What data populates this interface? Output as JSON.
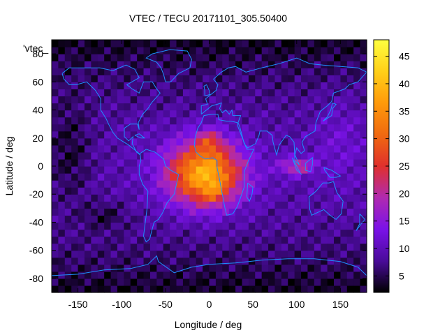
{
  "chart_data": {
    "type": "heatmap",
    "title": "VTEC / TECU 20171101_305.50400",
    "overlay_label": "'vtec_",
    "xlabel": "Longitude / deg",
    "ylabel": "Latitude / deg",
    "xlim": [
      -180,
      180
    ],
    "ylim": [
      -90,
      90
    ],
    "xticks": [
      -150,
      -100,
      -50,
      0,
      50,
      100,
      150
    ],
    "yticks": [
      -80,
      -60,
      -40,
      -20,
      0,
      20,
      40,
      60,
      80
    ],
    "colorbar": {
      "min": 2,
      "max": 48,
      "ticks": [
        5,
        10,
        15,
        20,
        25,
        30,
        35,
        40,
        45
      ]
    },
    "colormap": [
      "#000000",
      "#4a0b9a",
      "#7a12e8",
      "#b02ab0",
      "#e0302c",
      "#f06a10",
      "#ff9a0a",
      "#ffd018",
      "#ffff40"
    ],
    "anomaly_center": {
      "lon": -5,
      "lat": -5,
      "peak_tecu": 46
    },
    "background_tecu": 9,
    "grid": false
  },
  "map_outline_color": "#1e90ff"
}
